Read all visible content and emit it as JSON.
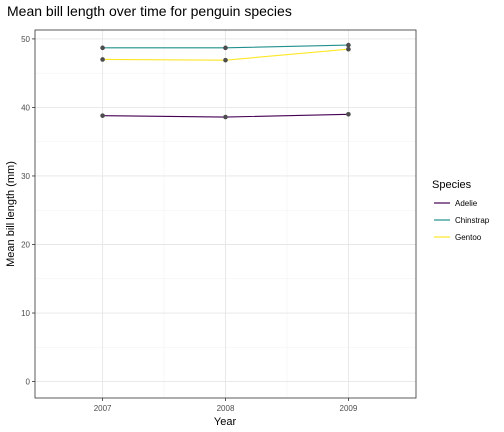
{
  "chart_data": {
    "type": "line",
    "title": "Mean bill length over time for penguin species",
    "xlabel": "Year",
    "ylabel": "Mean bill length (mm)",
    "x": [
      2007,
      2008,
      2009
    ],
    "xlim": [
      2006.45,
      2009.55
    ],
    "ylim": [
      -2.4,
      51.3
    ],
    "y_ticks": [
      0,
      10,
      20,
      30,
      40,
      50
    ],
    "grid": true,
    "legend_title": "Species",
    "legend_position": "right",
    "point_color": "#4d4d4d",
    "series": [
      {
        "name": "Adelie",
        "color": "#440154",
        "values": [
          38.8,
          38.6,
          39.0
        ]
      },
      {
        "name": "Chinstrap",
        "color": "#21908C",
        "values": [
          48.7,
          48.7,
          49.1
        ]
      },
      {
        "name": "Gentoo",
        "color": "#FDE725",
        "values": [
          47.0,
          46.9,
          48.5
        ]
      }
    ]
  }
}
